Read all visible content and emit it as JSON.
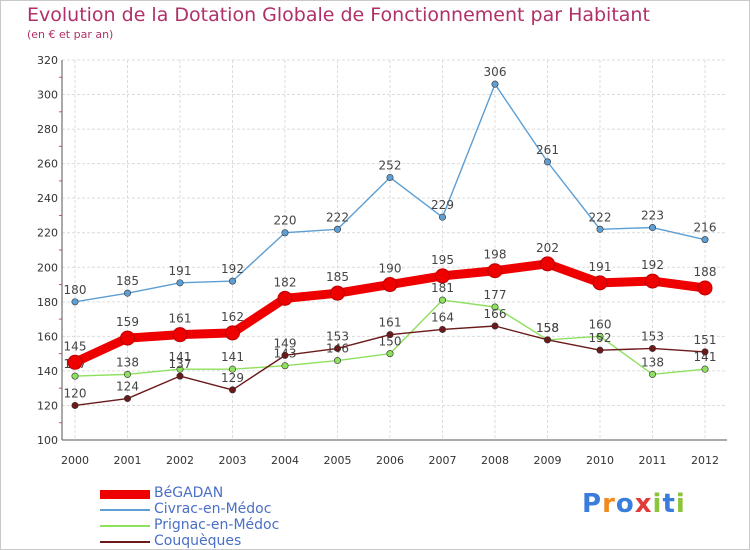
{
  "chart_data": {
    "type": "line",
    "title": "Evolution de la Dotation Globale de Fonctionnement par Habitant",
    "subtitle": "(en € et par an)",
    "xlabel": "",
    "ylabel": "",
    "x": [
      "2000",
      "2001",
      "2002",
      "2003",
      "2004",
      "2005",
      "2006",
      "2007",
      "2008",
      "2009",
      "2010",
      "2011",
      "2012"
    ],
    "yticks": [
      "100",
      "120",
      "140",
      "160",
      "180",
      "200",
      "220",
      "240",
      "260",
      "280",
      "300",
      "320"
    ],
    "ylim": [
      100,
      320
    ],
    "grid": true,
    "legend_position": "bottom-left",
    "series": [
      {
        "name": "BéGADAN",
        "color": "#ee0000",
        "emphasis": true,
        "values": [
          145,
          159,
          161,
          162,
          182,
          185,
          190,
          195,
          198,
          202,
          191,
          192,
          188
        ]
      },
      {
        "name": "Civrac-en-Médoc",
        "color": "#5d9fd4",
        "emphasis": false,
        "values": [
          180,
          185,
          191,
          192,
          220,
          222,
          252,
          229,
          306,
          261,
          222,
          223,
          216
        ]
      },
      {
        "name": "Prignac-en-Médoc",
        "color": "#8ee05f",
        "emphasis": false,
        "values": [
          137,
          138,
          141,
          141,
          143,
          146,
          150,
          181,
          177,
          158,
          160,
          138,
          141
        ]
      },
      {
        "name": "Couquèques",
        "color": "#6b1a1a",
        "emphasis": false,
        "values": [
          120,
          124,
          137,
          129,
          149,
          153,
          161,
          164,
          166,
          158,
          152,
          153,
          151
        ]
      }
    ]
  },
  "branding": {
    "logo_letters": [
      "P",
      "r",
      "o",
      "x",
      "i",
      "t",
      "i"
    ],
    "logo_colors": [
      "#3b7ddd",
      "#f08a1c",
      "#3b7ddd",
      "#e23a3a",
      "#8cc43c",
      "#3b7ddd",
      "#8cc43c"
    ]
  }
}
